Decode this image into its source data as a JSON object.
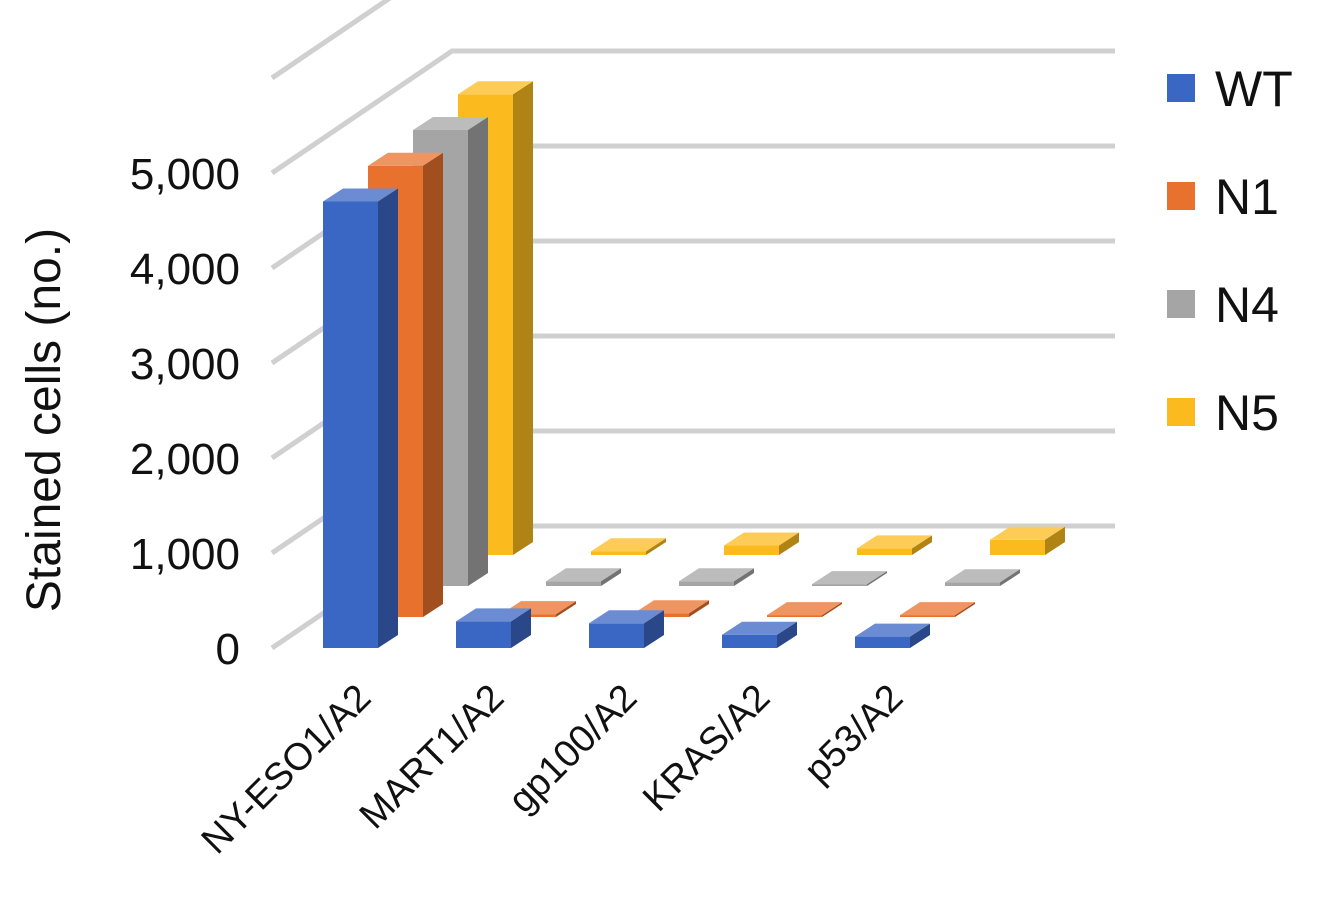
{
  "chart_data": {
    "type": "bar",
    "subtype": "3d-clustered-column",
    "title": "",
    "xlabel": "",
    "ylabel": "Stained cells (no.)",
    "ylim": [
      0,
      5000
    ],
    "yticks": [
      0,
      1000,
      2000,
      3000,
      4000,
      5000
    ],
    "ytick_labels": [
      "0",
      "1,000",
      "2,000",
      "3,000",
      "4,000",
      "5,000"
    ],
    "categories": [
      "NY-ESO1/A2",
      "MART1/A2",
      "gp100/A2",
      "KRAS/A2",
      "p53/A2"
    ],
    "series": [
      {
        "name": "WT",
        "color": "#3a66c4",
        "values": [
          4700,
          280,
          260,
          140,
          120
        ]
      },
      {
        "name": "N1",
        "color": "#e8712d",
        "values": [
          4750,
          30,
          40,
          20,
          20
        ]
      },
      {
        "name": "N4",
        "color": "#a5a5a5",
        "values": [
          4800,
          50,
          50,
          20,
          40
        ]
      },
      {
        "name": "N5",
        "color": "#fbbb1e",
        "values": [
          4850,
          40,
          100,
          70,
          160
        ]
      }
    ],
    "grid": true,
    "legend": "right"
  }
}
